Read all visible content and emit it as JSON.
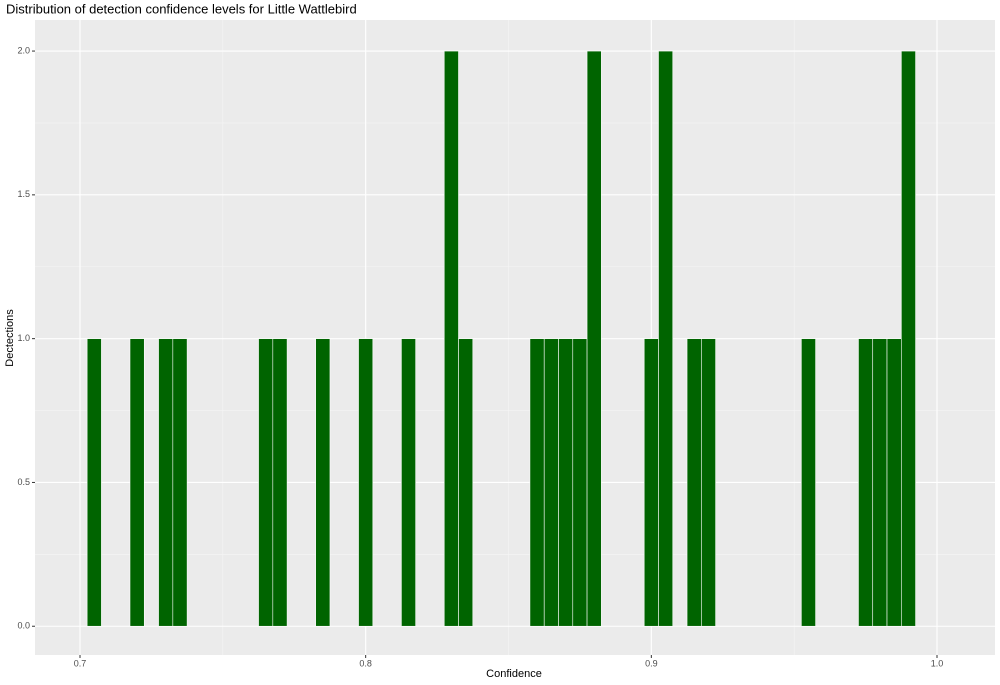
{
  "chart_data": {
    "type": "histogram",
    "title": "Distribution of detection confidence levels for Little Wattlebird",
    "x_label": "Confidence",
    "y_label": "Dectections",
    "color": "#006400",
    "edge_color": "#ffffff",
    "grid": true,
    "bins": [
      0.7025,
      0.7075,
      0.7125,
      0.7175,
      0.7225,
      0.7275,
      0.7325,
      0.7375,
      0.7425,
      0.7475,
      0.7525,
      0.7575,
      0.7625,
      0.7675,
      0.7725,
      0.7775,
      0.7825,
      0.7875,
      0.7925,
      0.7975,
      0.8025,
      0.8075,
      0.8125,
      0.8175,
      0.8225,
      0.8275,
      0.8325,
      0.8375,
      0.8425,
      0.8475,
      0.8525,
      0.8575,
      0.8625,
      0.8675,
      0.8725,
      0.8775,
      0.8825,
      0.8875,
      0.8925,
      0.8975,
      0.9025,
      0.9075,
      0.9125,
      0.9175,
      0.9225,
      0.9275,
      0.9325,
      0.9375,
      0.9425,
      0.9475,
      0.9525,
      0.9575,
      0.9625,
      0.9675,
      0.9725,
      0.9775,
      0.9825,
      0.9875,
      0.9925
    ],
    "values": [
      1,
      0,
      0,
      1,
      0,
      1,
      1,
      0,
      0,
      0,
      0,
      0,
      1,
      1,
      0,
      0,
      1,
      0,
      0,
      1,
      0,
      0,
      1,
      0,
      0,
      2,
      1,
      0,
      0,
      0,
      0,
      1,
      1,
      1,
      1,
      2,
      0,
      0,
      0,
      1,
      2,
      0,
      1,
      1,
      0,
      0,
      0,
      0,
      0,
      0,
      1,
      0,
      0,
      0,
      1,
      1,
      1,
      2
    ],
    "xlim": [
      0.68425,
      1.0203
    ],
    "xticks": [
      0.7,
      0.8,
      0.9,
      {
        "value": 1.0,
        "label": "1.0"
      }
    ],
    "ylim": [
      -0.1,
      2.108
    ],
    "yticks": [
      {
        "value": 0,
        "label": "0.0"
      },
      0.5,
      {
        "value": 1,
        "label": "1.0"
      },
      1.5,
      {
        "value": 2,
        "label": "2.0"
      }
    ]
  }
}
